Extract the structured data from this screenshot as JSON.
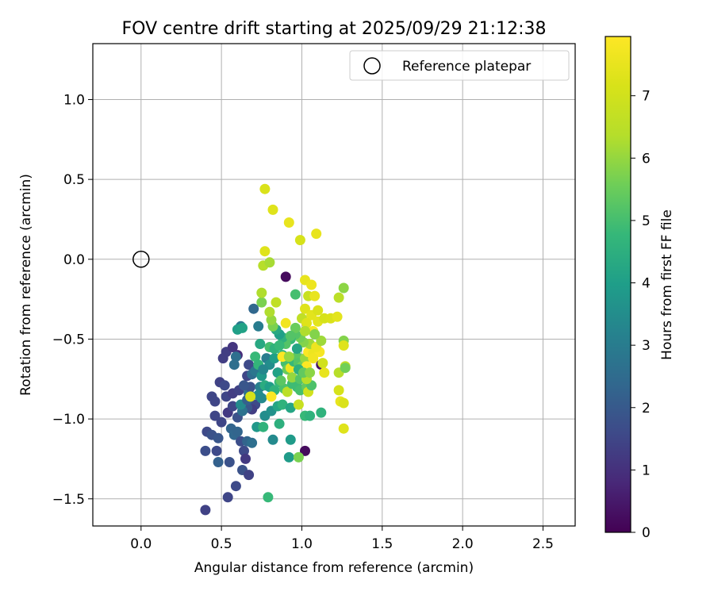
{
  "chart_data": {
    "type": "scatter",
    "title": "FOV centre drift starting at 2025/09/29 21:12:38",
    "xlabel": "Angular distance from reference (arcmin)",
    "ylabel": "Rotation from reference (arcmin)",
    "xlim": [
      -0.3,
      2.7
    ],
    "ylim": [
      -1.67,
      1.35
    ],
    "xticks": [
      0.0,
      0.5,
      1.0,
      1.5,
      2.0,
      2.5
    ],
    "xtick_labels": [
      "0.0",
      "0.5",
      "1.0",
      "1.5",
      "2.0",
      "2.5"
    ],
    "yticks": [
      1.0,
      0.5,
      0.0,
      -0.5,
      -1.0,
      -1.5
    ],
    "ytick_labels": [
      "1.0",
      "0.5",
      "0.0",
      "−0.5",
      "−1.0",
      "−1.5"
    ],
    "grid": true,
    "legend": {
      "position": "top-right",
      "label": "Reference platepar"
    },
    "reference_point": {
      "x": 0.0,
      "y": 0.0
    },
    "colorbar": {
      "label": "Hours from first FF file",
      "colormap": "viridis",
      "range": [
        0,
        7.95
      ],
      "ticks": [
        0,
        1,
        2,
        3,
        4,
        5,
        6,
        7
      ],
      "tick_labels": [
        "0",
        "1",
        "2",
        "3",
        "4",
        "5",
        "6",
        "7"
      ]
    },
    "points": [
      [
        0.9,
        -0.11,
        0.2
      ],
      [
        1.02,
        -1.2,
        0.2
      ],
      [
        1.12,
        -0.66,
        0.3
      ],
      [
        0.85,
        -0.71,
        0.5
      ],
      [
        0.4,
        -1.57,
        1.4
      ],
      [
        0.41,
        -1.08,
        1.6
      ],
      [
        0.44,
        -1.1,
        1.8
      ],
      [
        0.4,
        -1.2,
        1.7
      ],
      [
        0.47,
        -1.2,
        1.6
      ],
      [
        0.54,
        -1.49,
        1.5
      ],
      [
        0.59,
        -1.42,
        1.6
      ],
      [
        0.55,
        -1.27,
        1.8
      ],
      [
        0.48,
        -1.27,
        2.2
      ],
      [
        0.48,
        -1.12,
        1.9
      ],
      [
        0.46,
        -0.98,
        1.5
      ],
      [
        0.5,
        -1.02,
        1.5
      ],
      [
        0.44,
        -0.86,
        1.5
      ],
      [
        0.46,
        -0.89,
        1.5
      ],
      [
        0.53,
        -0.86,
        1.5
      ],
      [
        0.49,
        -0.77,
        1.4
      ],
      [
        0.52,
        -0.79,
        1.6
      ],
      [
        0.51,
        -0.62,
        1.3
      ],
      [
        0.53,
        -0.58,
        1.3
      ],
      [
        0.57,
        -0.55,
        1.1
      ],
      [
        0.6,
        -0.6,
        0.9
      ],
      [
        0.54,
        -0.96,
        1.2
      ],
      [
        0.57,
        -0.84,
        1.3
      ],
      [
        0.61,
        -0.82,
        1.4
      ],
      [
        0.57,
        -0.92,
        1.5
      ],
      [
        0.6,
        -0.99,
        1.8
      ],
      [
        0.56,
        -1.06,
        2.3
      ],
      [
        0.58,
        -1.1,
        2.4
      ],
      [
        0.62,
        -1.14,
        1.7
      ],
      [
        0.64,
        -1.2,
        1.6
      ],
      [
        0.65,
        -1.25,
        1.2
      ],
      [
        0.63,
        -1.32,
        1.8
      ],
      [
        0.67,
        -1.35,
        1.4
      ],
      [
        0.66,
        -1.14,
        2.3
      ],
      [
        0.69,
        -1.15,
        2.6
      ],
      [
        0.72,
        -1.05,
        3.8
      ],
      [
        0.76,
        -1.05,
        4.6
      ],
      [
        0.77,
        -0.98,
        3.5
      ],
      [
        0.82,
        -1.13,
        3.4
      ],
      [
        0.79,
        -1.49,
        4.8
      ],
      [
        0.92,
        -1.24,
        3.9
      ],
      [
        0.98,
        -1.24,
        5.7
      ],
      [
        0.93,
        -1.13,
        3.9
      ],
      [
        0.86,
        -1.03,
        4.5
      ],
      [
        0.81,
        -0.95,
        3.6
      ],
      [
        0.85,
        -0.92,
        4.2
      ],
      [
        0.88,
        -0.91,
        4.6
      ],
      [
        0.93,
        -0.93,
        4.2
      ],
      [
        0.98,
        -0.91,
        6.8
      ],
      [
        1.02,
        -0.98,
        4.8
      ],
      [
        1.05,
        -0.98,
        4.6
      ],
      [
        1.12,
        -0.96,
        4.6
      ],
      [
        0.71,
        -0.91,
        1.6
      ],
      [
        0.69,
        -0.94,
        1.3
      ],
      [
        0.66,
        -0.93,
        1.9
      ],
      [
        0.63,
        -0.95,
        2.7
      ],
      [
        0.62,
        -0.91,
        3.4
      ],
      [
        0.66,
        -0.88,
        2.2
      ],
      [
        0.67,
        -0.84,
        2.6
      ],
      [
        0.68,
        -0.8,
        1.8
      ],
      [
        0.64,
        -0.79,
        1.9
      ],
      [
        0.66,
        -0.73,
        1.5
      ],
      [
        0.67,
        -0.66,
        1.6
      ],
      [
        0.69,
        -0.72,
        2.5
      ],
      [
        0.71,
        -0.7,
        2.8
      ],
      [
        0.74,
        -0.8,
        3.1
      ],
      [
        0.73,
        -0.85,
        3.5
      ],
      [
        0.75,
        -0.87,
        3.4
      ],
      [
        0.68,
        -0.86,
        7.1
      ],
      [
        0.77,
        -0.79,
        4.4
      ],
      [
        0.8,
        -0.8,
        4.0
      ],
      [
        0.83,
        -0.82,
        4.6
      ],
      [
        0.86,
        -0.77,
        4.8
      ],
      [
        0.89,
        -0.81,
        5.1
      ],
      [
        0.91,
        -0.83,
        6.5
      ],
      [
        0.94,
        -0.78,
        4.9
      ],
      [
        0.97,
        -0.8,
        4.9
      ],
      [
        0.99,
        -0.82,
        5.0
      ],
      [
        1.03,
        -0.8,
        5.4
      ],
      [
        1.04,
        -0.83,
        7.0
      ],
      [
        1.06,
        -0.79,
        5.1
      ],
      [
        0.81,
        -0.86,
        7.9
      ],
      [
        0.78,
        -0.62,
        3.0
      ],
      [
        0.8,
        -0.66,
        3.5
      ],
      [
        0.83,
        -0.62,
        4.0
      ],
      [
        0.8,
        -0.55,
        5.0
      ],
      [
        0.83,
        -0.56,
        4.6
      ],
      [
        0.88,
        -0.6,
        4.6
      ],
      [
        0.9,
        -0.65,
        5.0
      ],
      [
        0.91,
        -0.69,
        5.5
      ],
      [
        0.93,
        -0.68,
        7.6
      ],
      [
        0.95,
        -0.64,
        4.8
      ],
      [
        0.97,
        -0.61,
        5.3
      ],
      [
        0.98,
        -0.65,
        5.2
      ],
      [
        1.0,
        -0.67,
        5.6
      ],
      [
        1.02,
        -0.62,
        6.0
      ],
      [
        1.04,
        -0.58,
        7.9
      ],
      [
        1.07,
        -0.59,
        7.6
      ],
      [
        1.05,
        -0.53,
        6.1
      ],
      [
        1.01,
        -0.52,
        5.8
      ],
      [
        0.99,
        -0.49,
        5.6
      ],
      [
        0.96,
        -0.47,
        5.2
      ],
      [
        0.93,
        -0.5,
        4.8
      ],
      [
        0.9,
        -0.53,
        5.2
      ],
      [
        0.88,
        -0.49,
        4.5
      ],
      [
        0.86,
        -0.47,
        4.0
      ],
      [
        0.84,
        -0.44,
        4.3
      ],
      [
        0.82,
        -0.42,
        5.7
      ],
      [
        0.81,
        -0.38,
        6.0
      ],
      [
        0.8,
        -0.33,
        6.3
      ],
      [
        0.84,
        -0.27,
        6.6
      ],
      [
        0.75,
        -0.27,
        5.7
      ],
      [
        0.75,
        -0.21,
        6.3
      ],
      [
        0.76,
        -0.04,
        6.4
      ],
      [
        0.8,
        -0.02,
        6.2
      ],
      [
        0.77,
        0.05,
        7.3
      ],
      [
        0.77,
        0.44,
        7.2
      ],
      [
        0.82,
        0.31,
        7.3
      ],
      [
        0.92,
        0.23,
        7.5
      ],
      [
        0.99,
        0.12,
        7.1
      ],
      [
        1.09,
        0.16,
        7.5
      ],
      [
        1.02,
        -0.13,
        7.5
      ],
      [
        1.06,
        -0.16,
        7.6
      ],
      [
        1.04,
        -0.23,
        6.8
      ],
      [
        1.08,
        -0.23,
        7.5
      ],
      [
        1.02,
        -0.31,
        7.3
      ],
      [
        1.06,
        -0.35,
        7.4
      ],
      [
        1.1,
        -0.32,
        7.2
      ],
      [
        1.0,
        -0.37,
        6.6
      ],
      [
        1.03,
        -0.4,
        7.3
      ],
      [
        1.07,
        -0.45,
        7.8
      ],
      [
        1.1,
        -0.39,
        7.4
      ],
      [
        1.14,
        -0.37,
        7.1
      ],
      [
        1.18,
        -0.37,
        7.2
      ],
      [
        1.22,
        -0.36,
        7.4
      ],
      [
        1.23,
        -0.24,
        6.5
      ],
      [
        1.26,
        -0.18,
        5.9
      ],
      [
        1.26,
        -0.51,
        5.8
      ],
      [
        1.26,
        -0.54,
        7.3
      ],
      [
        1.23,
        -0.71,
        6.4
      ],
      [
        1.27,
        -0.67,
        6.6
      ],
      [
        1.27,
        -0.68,
        5.6
      ],
      [
        1.23,
        -0.82,
        7.1
      ],
      [
        1.24,
        -0.89,
        7.5
      ],
      [
        1.26,
        -0.9,
        7.2
      ],
      [
        1.26,
        -1.06,
        7.3
      ],
      [
        1.13,
        -0.65,
        7.0
      ],
      [
        1.14,
        -0.71,
        7.5
      ],
      [
        1.11,
        -0.58,
        7.8
      ],
      [
        1.09,
        -0.55,
        7.6
      ],
      [
        1.07,
        -0.62,
        7.7
      ],
      [
        1.03,
        -0.67,
        7.9
      ],
      [
        0.9,
        -0.4,
        7.7
      ],
      [
        0.88,
        -0.61,
        7.9
      ],
      [
        0.96,
        -0.22,
        5.0
      ],
      [
        0.86,
        -0.54,
        4.8
      ],
      [
        0.96,
        -0.43,
        5.5
      ],
      [
        0.93,
        -0.48,
        5.2
      ],
      [
        0.73,
        -0.42,
        3.0
      ],
      [
        0.7,
        -0.31,
        2.4
      ],
      [
        0.62,
        -0.42,
        2.8
      ],
      [
        0.6,
        -0.44,
        4.0
      ],
      [
        0.63,
        -0.43,
        4.1
      ],
      [
        0.59,
        -0.61,
        2.6
      ],
      [
        0.58,
        -0.66,
        2.6
      ],
      [
        0.74,
        -0.53,
        4.3
      ],
      [
        0.71,
        -0.61,
        4.8
      ],
      [
        0.73,
        -0.66,
        4.7
      ],
      [
        0.75,
        -0.73,
        3.8
      ],
      [
        0.76,
        -0.69,
        3.3
      ],
      [
        0.85,
        -0.71,
        4.1
      ],
      [
        0.87,
        -0.76,
        5.3
      ],
      [
        0.94,
        -0.74,
        6.0
      ],
      [
        0.99,
        -0.75,
        5.2
      ],
      [
        1.03,
        -0.75,
        6.4
      ],
      [
        1.12,
        -0.51,
        6.1
      ],
      [
        1.08,
        -0.47,
        5.8
      ],
      [
        1.02,
        -0.45,
        6.3
      ],
      [
        0.97,
        -0.56,
        4.2
      ],
      [
        0.92,
        -0.61,
        6.0
      ],
      [
        0.98,
        -0.69,
        4.5
      ],
      [
        1.01,
        -0.71,
        5.4
      ],
      [
        1.05,
        -0.71,
        5.9
      ],
      [
        0.6,
        -1.08,
        2.3
      ]
    ]
  }
}
